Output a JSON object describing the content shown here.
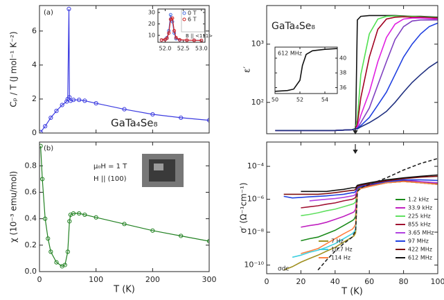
{
  "chart_data": [
    {
      "type": "line",
      "panel_label": "(a)",
      "y_label": "Cₚ / T (J mol⁻¹ K⁻²)",
      "annotations": [
        "GaTa₄Se₈"
      ],
      "x": [
        2,
        10,
        20,
        30,
        40,
        48,
        50,
        52,
        53,
        55,
        60,
        70,
        80,
        100,
        150,
        200,
        250,
        300
      ],
      "series": [
        {
          "color": "#3a3ae0",
          "values": [
            0.05,
            0.4,
            0.9,
            1.3,
            1.65,
            1.85,
            2.0,
            7.3,
            2.1,
            1.9,
            1.95,
            1.95,
            1.9,
            1.75,
            1.4,
            1.1,
            0.9,
            0.75
          ]
        }
      ],
      "marker": "circle",
      "xlim": [
        0,
        300
      ],
      "xticks": [
        0,
        100,
        200,
        300
      ],
      "xtick_labels": false,
      "ylim": [
        0,
        7.5
      ],
      "yticks": [
        0,
        2,
        4,
        6
      ]
    },
    {
      "type": "line",
      "annotations": [
        "B || <111>"
      ],
      "x": [
        51.9,
        52.0,
        52.05,
        52.1,
        52.15,
        52.2,
        52.25,
        52.3,
        52.4,
        52.6,
        52.8,
        53.0
      ],
      "series": [
        {
          "name": "0 T",
          "color": "#4a70e0",
          "values": [
            6,
            6.5,
            8,
            14,
            28,
            22,
            12,
            7,
            6,
            5.8,
            5.7,
            5.6
          ]
        },
        {
          "name": "6 T",
          "color": "#d02020",
          "values": [
            6,
            6.3,
            7.5,
            12,
            24,
            25,
            14,
            8,
            6.2,
            5.8,
            5.7,
            5.6
          ]
        }
      ],
      "marker": "circle",
      "xlim": [
        51.8,
        53.1
      ],
      "xticks": [
        {
          "value": 52,
          "label": "52.0"
        },
        52.5,
        {
          "value": 53,
          "label": "53.0"
        }
      ],
      "ylim": [
        4,
        33
      ],
      "yticks": [
        10,
        20,
        30
      ],
      "legend": "upper right"
    },
    {
      "type": "line",
      "panel_label": "(b)",
      "y_label": "χ (10⁻³ emu/mol)",
      "x_label": "T (K)",
      "annotations": [
        "μ₀H = 1 T",
        "H || (100)"
      ],
      "x": [
        2,
        5,
        10,
        15,
        20,
        30,
        40,
        45,
        50,
        53,
        55,
        60,
        70,
        80,
        100,
        150,
        200,
        250,
        300
      ],
      "series": [
        {
          "color": "#208020",
          "values": [
            0.95,
            0.7,
            0.4,
            0.25,
            0.15,
            0.07,
            0.04,
            0.05,
            0.15,
            0.38,
            0.43,
            0.44,
            0.44,
            0.43,
            0.41,
            0.36,
            0.31,
            0.27,
            0.23
          ]
        }
      ],
      "marker": "circle",
      "xlim": [
        0,
        300
      ],
      "xticks": [
        0,
        100,
        200,
        300
      ],
      "ylim": [
        0,
        0.98
      ],
      "yticks": [
        {
          "value": 0,
          "label": "0.0"
        },
        0.2,
        0.4,
        0.6,
        0.8
      ]
    },
    {
      "type": "line",
      "y_label": "ε′",
      "annotations": [
        "GaTa₄Se₈"
      ],
      "log_y": true,
      "x": [
        5,
        10,
        20,
        30,
        40,
        50,
        52,
        53,
        55,
        60,
        65,
        70,
        75,
        80,
        85,
        90,
        95,
        100
      ],
      "series": [
        {
          "color": "#111111",
          "values": [
            33,
            33,
            33,
            33,
            33,
            34,
            36,
            2600,
            3000,
            3100,
            3100,
            3100,
            3100,
            3050,
            3000,
            3000,
            2950,
            2900
          ]
        },
        {
          "color": "#50e050",
          "values": [
            33,
            33,
            33,
            33,
            33,
            34,
            36,
            50,
            300,
            1500,
            2700,
            3000,
            3050,
            3000,
            3000,
            2950,
            2900,
            2850
          ]
        },
        {
          "color": "#a00020",
          "values": [
            33,
            33,
            33,
            33,
            33,
            34,
            35,
            42,
            120,
            600,
            1800,
            2700,
            2900,
            2950,
            2900,
            2900,
            2850,
            2800
          ]
        },
        {
          "color": "#e020e0",
          "values": [
            33,
            33,
            33,
            33,
            33,
            34,
            35,
            38,
            60,
            150,
            500,
            1300,
            2200,
            2700,
            2800,
            2800,
            2750,
            2700
          ]
        },
        {
          "color": "#8040c0",
          "values": [
            33,
            33,
            33,
            33,
            33,
            34,
            35,
            36,
            45,
            80,
            200,
            500,
            1200,
            2000,
            2500,
            2600,
            2600,
            2600
          ]
        },
        {
          "color": "#2040e0",
          "values": [
            33,
            33,
            33,
            33,
            33,
            34,
            35,
            36,
            40,
            55,
            90,
            150,
            300,
            600,
            1000,
            1500,
            2000,
            2300
          ]
        },
        {
          "color": "#203080",
          "values": [
            33,
            33,
            33,
            33,
            33,
            34,
            35,
            35,
            38,
            45,
            55,
            70,
            100,
            150,
            220,
            300,
            400,
            500
          ]
        }
      ],
      "xlim": [
        0,
        100
      ],
      "xticks": [
        0,
        20,
        40,
        60,
        80,
        100
      ],
      "xtick_labels": false,
      "ylim": [
        29,
        4600
      ],
      "yticks": [
        {
          "value": 100,
          "label": "10²"
        },
        {
          "value": 1000,
          "label": "10³"
        }
      ]
    },
    {
      "type": "line",
      "annotations": [
        "612 MHz"
      ],
      "x": [
        50,
        51,
        51.5,
        52,
        52.2,
        52.5,
        53,
        54,
        55
      ],
      "series": [
        {
          "color": "#111111",
          "values": [
            35.5,
            35.6,
            35.8,
            37,
            39,
            40.5,
            41,
            41.2,
            41.3
          ]
        }
      ],
      "xlim": [
        50,
        55
      ],
      "xticks": [
        50,
        52,
        54
      ],
      "ylim": [
        35.2,
        41.5
      ],
      "yticks": [
        36,
        38,
        40
      ]
    },
    {
      "type": "line",
      "y_label": "σ′ (Ω⁻¹cm⁻¹)",
      "x_label": "T (K)",
      "log_y": true,
      "legend": "lower right",
      "x": [
        5,
        10,
        15,
        20,
        25,
        30,
        35,
        40,
        45,
        50,
        51,
        52,
        53,
        55,
        60,
        70,
        80,
        90,
        100
      ],
      "series": [
        {
          "name": "1.2 kHz",
          "color": "#1a8a1a",
          "values": [
            null,
            null,
            null,
            3e-09,
            4e-09,
            5e-09,
            8e-09,
            1.3e-08,
            2.5e-08,
            5e-08,
            6e-08,
            9e-08,
            3e-06,
            4.5e-06,
            6e-06,
            1e-05,
            1.2e-05,
            1e-05,
            8e-06
          ]
        },
        {
          "name": "33.9 kHz",
          "color": "#c020c0",
          "values": [
            null,
            null,
            null,
            2e-08,
            2.5e-08,
            3e-08,
            4e-08,
            6e-08,
            9e-08,
            1.5e-07,
            1.7e-07,
            2.5e-07,
            3.5e-06,
            5e-06,
            6.5e-06,
            1e-05,
            1.2e-05,
            1e-05,
            8e-06
          ]
        },
        {
          "name": "225 kHz",
          "color": "#60e060",
          "values": [
            null,
            null,
            null,
            1e-07,
            1.2e-07,
            1.5e-07,
            2e-07,
            2.5e-07,
            3.5e-07,
            5e-07,
            5.5e-07,
            7e-07,
            4e-06,
            5e-06,
            7e-06,
            1e-05,
            1.2e-05,
            1e-05,
            8e-06
          ]
        },
        {
          "name": "855 kHz",
          "color": "#a01030",
          "values": [
            null,
            null,
            null,
            3e-07,
            3.5e-07,
            4e-07,
            5e-07,
            6e-07,
            8e-07,
            1e-06,
            1.1e-06,
            1.3e-06,
            4.5e-06,
            5.5e-06,
            7e-06,
            1.1e-05,
            1.3e-05,
            1.1e-05,
            9e-06
          ]
        },
        {
          "name": "3.65 MHz",
          "color": "#b040e0",
          "values": [
            null,
            null,
            null,
            null,
            8e-07,
            9e-07,
            1e-06,
            1.1e-06,
            1.3e-06,
            1.6e-06,
            1.7e-06,
            2e-06,
            5e-06,
            6e-06,
            8e-06,
            1.2e-05,
            1.5e-05,
            1.2e-05,
            1e-05
          ]
        },
        {
          "name": "97 MHz",
          "color": "#2040e0",
          "values": [
            null,
            1.5e-06,
            1.2e-06,
            1.3e-06,
            1.4e-06,
            1.5e-06,
            1.6e-06,
            1.8e-06,
            2e-06,
            2.5e-06,
            2.5e-06,
            3e-06,
            5e-06,
            6e-06,
            8e-06,
            1.1e-05,
            1.5e-05,
            1.5e-05,
            1.4e-05
          ]
        },
        {
          "name": "422 MHz",
          "color": "#801010",
          "values": [
            null,
            2e-06,
            2e-06,
            2e-06,
            2e-06,
            2e-06,
            2.2e-06,
            2.5e-06,
            3e-06,
            3.5e-06,
            3.5e-06,
            4e-06,
            6e-06,
            7e-06,
            9e-06,
            1.3e-05,
            1.8e-05,
            2.2e-05,
            2.5e-05
          ]
        },
        {
          "name": "612 MHz",
          "color": "#111111",
          "values": [
            null,
            null,
            null,
            3e-06,
            3e-06,
            3e-06,
            3e-06,
            3.5e-06,
            4e-06,
            5e-06,
            5e-06,
            5e-06,
            7e-06,
            8e-06,
            1e-05,
            1.5e-05,
            2e-05,
            2.5e-05,
            3e-05
          ]
        },
        {
          "name": "7 Hz",
          "color": "#a09020",
          "values": [
            null,
            5e-11,
            8e-11,
            1.5e-10,
            2.5e-10,
            4e-10,
            7e-10,
            1.2e-09,
            2.5e-09,
            5e-09,
            6e-09,
            9e-09,
            3e-06,
            4.5e-06,
            6e-06,
            1e-05,
            1.2e-05,
            1e-05,
            8e-06
          ]
        },
        {
          "name": "10.7 Hz",
          "color": "#40d0e0",
          "values": [
            null,
            null,
            3e-10,
            4e-10,
            6e-10,
            8e-10,
            1.2e-09,
            2e-09,
            4e-09,
            8e-09,
            1e-08,
            1.5e-08,
            3e-06,
            4.5e-06,
            6e-06,
            1e-05,
            1.2e-05,
            1e-05,
            8e-06
          ]
        },
        {
          "name": "114 Hz",
          "color": "#ff8040",
          "values": [
            null,
            null,
            null,
            5e-10,
            7e-10,
            1e-09,
            2e-09,
            4e-09,
            8e-09,
            1.5e-08,
            2e-08,
            3e-08,
            3e-06,
            4.5e-06,
            6e-06,
            1e-05,
            1.2e-05,
            1e-05,
            8e-06
          ]
        },
        {
          "name": "σdc",
          "color": "#222222",
          "dashed": true,
          "values": [
            null,
            null,
            null,
            null,
            null,
            5e-11,
            2e-10,
            7e-10,
            2e-09,
            5e-09,
            8e-09,
            1.2e-08,
            3e-06,
            5e-06,
            8e-06,
            2e-05,
            6e-05,
            0.00015,
            0.0003
          ]
        }
      ],
      "xlim": [
        0,
        100
      ],
      "xticks": [
        0,
        20,
        40,
        60,
        80,
        100
      ],
      "ylim": [
        3e-11,
        0.003
      ],
      "yticks": [
        {
          "value": 1e-10,
          "label": "10⁻¹⁰"
        },
        {
          "value": 1e-08,
          "label": "10⁻⁸"
        },
        {
          "value": 1e-06,
          "label": "10⁻⁶"
        },
        {
          "value": 0.0001,
          "label": "10⁻⁴"
        }
      ]
    }
  ]
}
